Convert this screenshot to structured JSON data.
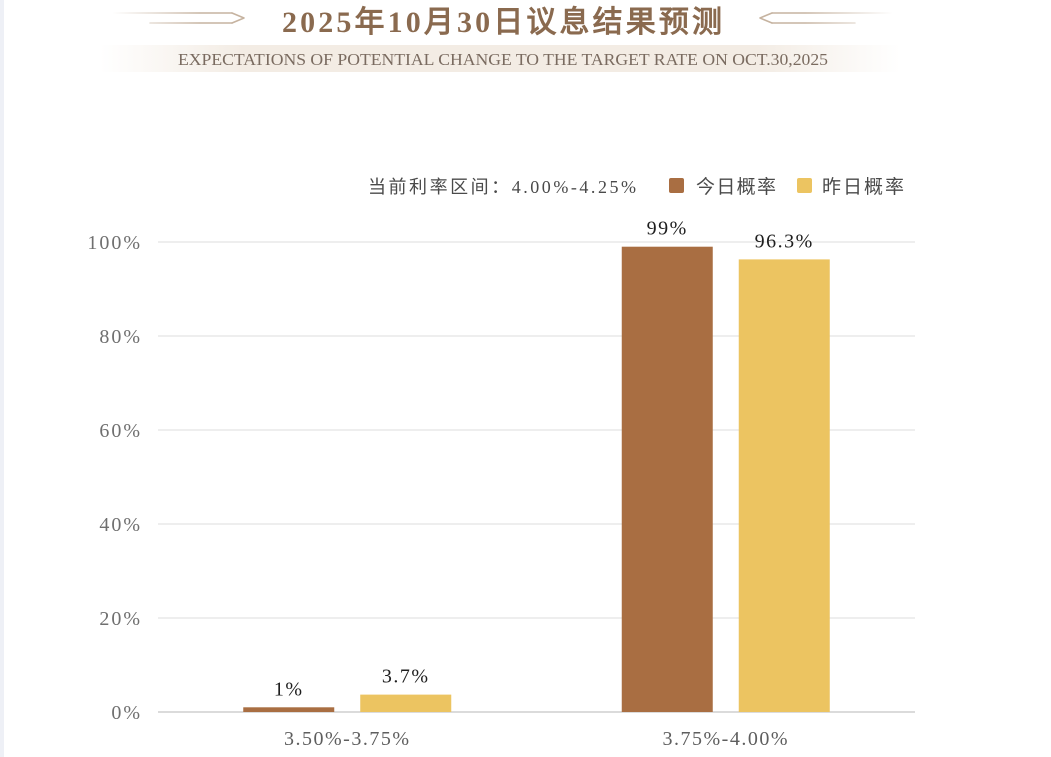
{
  "chart_data": {
    "type": "bar",
    "title": "2025年10月30日议息结果预测",
    "subtitle": "EXPECTATIONS OF POTENTIAL CHANGE TO THE TARGET RATE ON OCT.30,2025",
    "annotation": "当前利率区间：4.00%-4.25%",
    "categories": [
      "3.50%-3.75%",
      "3.75%-4.00%"
    ],
    "series": [
      {
        "name": "今日概率",
        "color": "#A96E42",
        "values": [
          1,
          99
        ],
        "labels": [
          "1%",
          "99%"
        ]
      },
      {
        "name": "昨日概率",
        "color": "#ECC461",
        "values": [
          3.7,
          96.3
        ],
        "labels": [
          "3.7%",
          "96.3%"
        ]
      }
    ],
    "xlabel": "",
    "ylabel": "",
    "ylim": [
      0,
      100
    ],
    "yticks": [
      0,
      20,
      40,
      60,
      80,
      100
    ],
    "ytick_labels": [
      "0%",
      "20%",
      "40%",
      "60%",
      "80%",
      "100%"
    ],
    "grid": true
  }
}
